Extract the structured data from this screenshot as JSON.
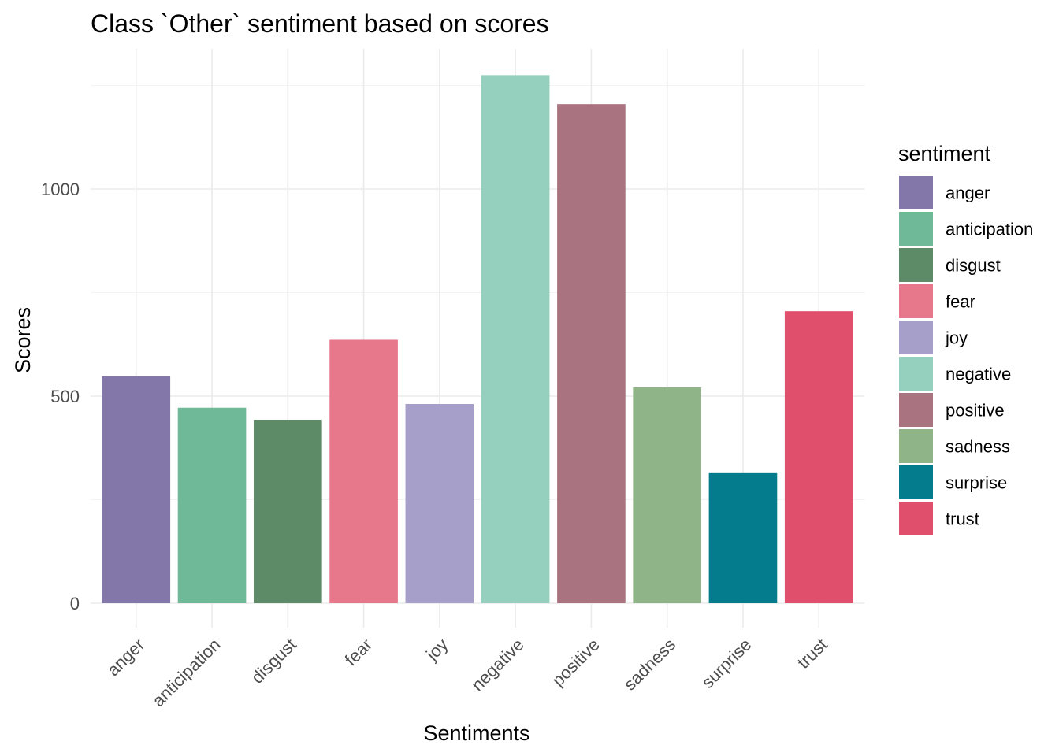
{
  "chart_data": {
    "type": "bar",
    "title": "Class `Other` sentiment based on scores",
    "xlabel": "Sentiments",
    "ylabel": "Scores",
    "categories": [
      "anger",
      "anticipation",
      "disgust",
      "fear",
      "joy",
      "negative",
      "positive",
      "sadness",
      "surprise",
      "trust"
    ],
    "values": [
      548,
      472,
      443,
      636,
      481,
      1275,
      1205,
      521,
      314,
      705
    ],
    "colors": [
      "#8377A9",
      "#6FB898",
      "#5E8B67",
      "#E7788B",
      "#A59FC9",
      "#95D0BF",
      "#A97480",
      "#8FB487",
      "#047C8E",
      "#E0506C"
    ],
    "ylim": [
      -50,
      1330
    ],
    "yticks": [
      0,
      500,
      1000
    ],
    "grid": true,
    "legend": {
      "title": "sentiment",
      "position": "right"
    }
  }
}
